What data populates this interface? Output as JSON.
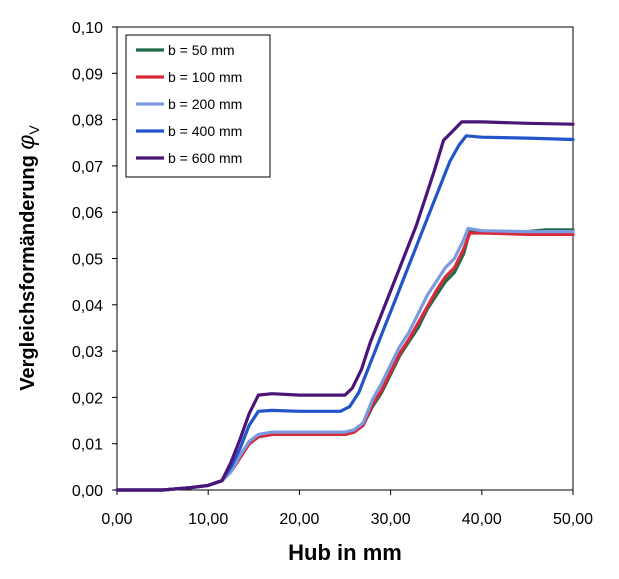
{
  "chart_data": {
    "type": "line",
    "title": "",
    "xlabel": "Hub in mm",
    "ylabel_main": "Vergleichsformänderung ",
    "ylabel_symbol": "φ",
    "ylabel_subscript": "V",
    "xlim": [
      0,
      50
    ],
    "ylim": [
      0,
      0.1
    ],
    "x_ticks": [
      0,
      10,
      20,
      30,
      40,
      50
    ],
    "x_tick_labels": [
      "0,00",
      "10,00",
      "20,00",
      "30,00",
      "40,00",
      "50,00"
    ],
    "y_ticks": [
      0,
      0.01,
      0.02,
      0.03,
      0.04,
      0.05,
      0.06,
      0.07,
      0.08,
      0.09,
      0.1
    ],
    "y_tick_labels": [
      "0,00",
      "0,01",
      "0,02",
      "0,03",
      "0,04",
      "0,05",
      "0,06",
      "0,07",
      "0,08",
      "0,09",
      "0,10"
    ],
    "grid": false,
    "legend_position": "top-left",
    "series": [
      {
        "name": "b = 50 mm",
        "color": "#1f6b4a",
        "points": [
          [
            0,
            0
          ],
          [
            5,
            0
          ],
          [
            8,
            0.0005
          ],
          [
            10,
            0.001
          ],
          [
            11.5,
            0.002
          ],
          [
            12.5,
            0.004
          ],
          [
            13.5,
            0.007
          ],
          [
            14.5,
            0.01
          ],
          [
            15.5,
            0.0115
          ],
          [
            17,
            0.012
          ],
          [
            20,
            0.012
          ],
          [
            23,
            0.012
          ],
          [
            25,
            0.012
          ],
          [
            26,
            0.0125
          ],
          [
            27,
            0.014
          ],
          [
            28,
            0.018
          ],
          [
            29,
            0.021
          ],
          [
            30,
            0.025
          ],
          [
            31,
            0.029
          ],
          [
            32,
            0.032
          ],
          [
            33,
            0.035
          ],
          [
            34,
            0.039
          ],
          [
            35,
            0.042
          ],
          [
            36,
            0.045
          ],
          [
            37,
            0.047
          ],
          [
            38,
            0.051
          ],
          [
            38.7,
            0.056
          ],
          [
            40,
            0.0558
          ],
          [
            45,
            0.0558
          ],
          [
            47,
            0.0562
          ],
          [
            50,
            0.0562
          ]
        ]
      },
      {
        "name": "b = 100 mm",
        "color": "#d8283a",
        "points": [
          [
            0,
            0
          ],
          [
            5,
            0
          ],
          [
            8,
            0.0005
          ],
          [
            10,
            0.001
          ],
          [
            11.5,
            0.002
          ],
          [
            12.5,
            0.004
          ],
          [
            13.5,
            0.007
          ],
          [
            14.5,
            0.01
          ],
          [
            15.5,
            0.0115
          ],
          [
            17,
            0.012
          ],
          [
            20,
            0.012
          ],
          [
            23,
            0.012
          ],
          [
            25,
            0.012
          ],
          [
            26,
            0.0125
          ],
          [
            27,
            0.014
          ],
          [
            28,
            0.0185
          ],
          [
            29,
            0.0215
          ],
          [
            30,
            0.0255
          ],
          [
            31,
            0.0295
          ],
          [
            32,
            0.0325
          ],
          [
            33,
            0.036
          ],
          [
            34,
            0.0395
          ],
          [
            35,
            0.043
          ],
          [
            36,
            0.046
          ],
          [
            37,
            0.048
          ],
          [
            38,
            0.052
          ],
          [
            38.7,
            0.0555
          ],
          [
            40,
            0.0555
          ],
          [
            45,
            0.0552
          ],
          [
            50,
            0.0552
          ]
        ]
      },
      {
        "name": "b = 200 mm",
        "color": "#7b9be0",
        "points": [
          [
            0,
            0
          ],
          [
            5,
            0
          ],
          [
            8,
            0.0005
          ],
          [
            10,
            0.001
          ],
          [
            11.5,
            0.002
          ],
          [
            12.5,
            0.004
          ],
          [
            13.5,
            0.0075
          ],
          [
            14.5,
            0.0105
          ],
          [
            15.5,
            0.012
          ],
          [
            17,
            0.0125
          ],
          [
            20,
            0.0125
          ],
          [
            23,
            0.0125
          ],
          [
            25,
            0.0125
          ],
          [
            26,
            0.013
          ],
          [
            27,
            0.0145
          ],
          [
            28,
            0.0195
          ],
          [
            29,
            0.023
          ],
          [
            30,
            0.027
          ],
          [
            31,
            0.031
          ],
          [
            32,
            0.034
          ],
          [
            33,
            0.038
          ],
          [
            34,
            0.042
          ],
          [
            35,
            0.045
          ],
          [
            36,
            0.048
          ],
          [
            37,
            0.05
          ],
          [
            38,
            0.054
          ],
          [
            38.5,
            0.0565
          ],
          [
            40,
            0.056
          ],
          [
            45,
            0.0558
          ],
          [
            50,
            0.0558
          ]
        ]
      },
      {
        "name": "b = 400 mm",
        "color": "#2255c8",
        "points": [
          [
            0,
            0
          ],
          [
            5,
            0
          ],
          [
            8,
            0.0005
          ],
          [
            10,
            0.001
          ],
          [
            11.5,
            0.002
          ],
          [
            12.5,
            0.005
          ],
          [
            13.5,
            0.009
          ],
          [
            14.5,
            0.014
          ],
          [
            15.5,
            0.017
          ],
          [
            17,
            0.0172
          ],
          [
            20,
            0.017
          ],
          [
            23,
            0.017
          ],
          [
            24.5,
            0.017
          ],
          [
            25.5,
            0.018
          ],
          [
            26.5,
            0.021
          ],
          [
            27.5,
            0.026
          ],
          [
            28.5,
            0.031
          ],
          [
            29.5,
            0.036
          ],
          [
            30.5,
            0.041
          ],
          [
            31.5,
            0.046
          ],
          [
            32.5,
            0.051
          ],
          [
            33.5,
            0.056
          ],
          [
            34.5,
            0.061
          ],
          [
            35.5,
            0.066
          ],
          [
            36.5,
            0.071
          ],
          [
            37.5,
            0.0745
          ],
          [
            38.3,
            0.0765
          ],
          [
            40,
            0.0762
          ],
          [
            45,
            0.076
          ],
          [
            50,
            0.0757
          ]
        ]
      },
      {
        "name": "b = 600 mm",
        "color": "#4b1578",
        "points": [
          [
            0,
            0
          ],
          [
            5,
            0
          ],
          [
            8,
            0.0005
          ],
          [
            10,
            0.001
          ],
          [
            11.5,
            0.002
          ],
          [
            12.5,
            0.006
          ],
          [
            13.5,
            0.011
          ],
          [
            14.5,
            0.0165
          ],
          [
            15.5,
            0.0205
          ],
          [
            17,
            0.0208
          ],
          [
            20,
            0.0205
          ],
          [
            23,
            0.0205
          ],
          [
            25,
            0.0205
          ],
          [
            25.8,
            0.022
          ],
          [
            26.8,
            0.026
          ],
          [
            27.8,
            0.032
          ],
          [
            28.8,
            0.037
          ],
          [
            29.8,
            0.042
          ],
          [
            30.8,
            0.047
          ],
          [
            31.8,
            0.052
          ],
          [
            32.8,
            0.057
          ],
          [
            33.8,
            0.063
          ],
          [
            34.8,
            0.069
          ],
          [
            35.8,
            0.0755
          ],
          [
            36.8,
            0.0775
          ],
          [
            37.8,
            0.0795
          ],
          [
            40,
            0.0795
          ],
          [
            45,
            0.0792
          ],
          [
            50,
            0.079
          ]
        ]
      }
    ]
  }
}
